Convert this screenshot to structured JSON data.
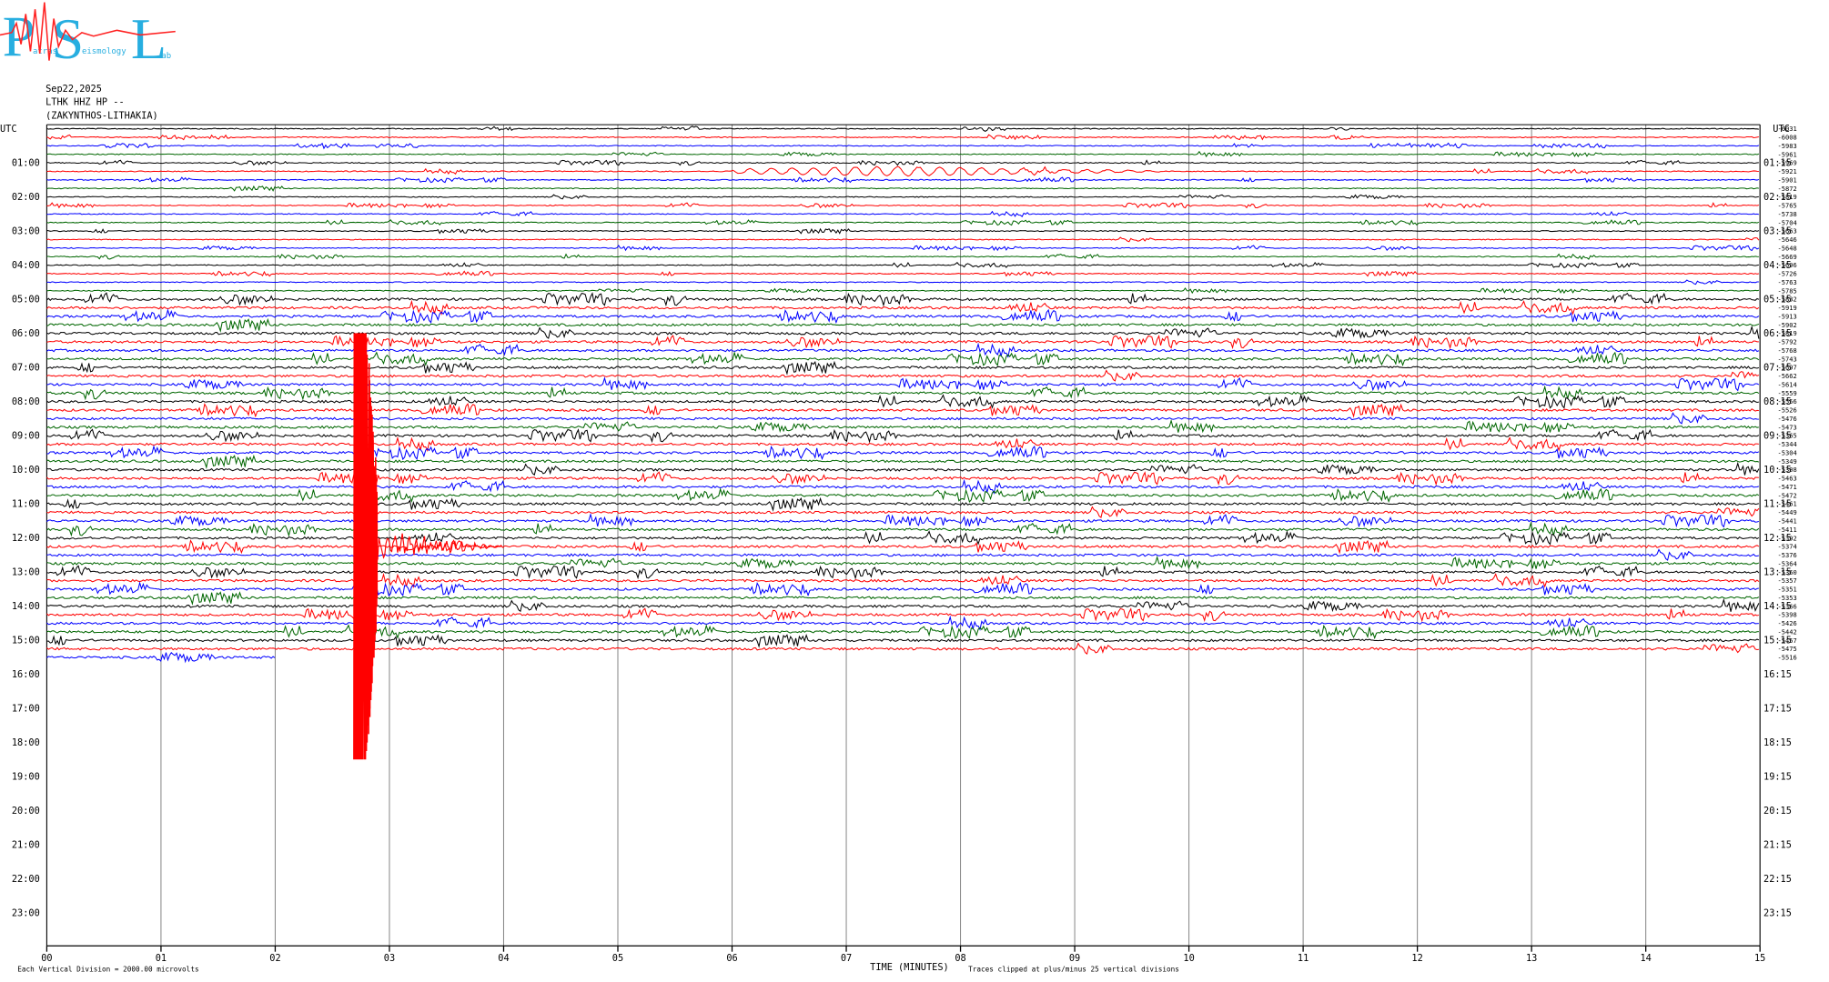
{
  "logo": {
    "letters": [
      "P",
      "S",
      "L"
    ],
    "small": [
      "atras",
      "eismology",
      "ab"
    ]
  },
  "header": {
    "date": "Sep22,2025",
    "station": "LTHK HHZ HP --",
    "location": "(ZAKYNTHOS-LITHAKIA)"
  },
  "left_axis": {
    "label": "UTC",
    "hours": [
      "01:00",
      "02:00",
      "03:00",
      "04:00",
      "05:00",
      "06:00",
      "07:00",
      "08:00",
      "09:00",
      "10:00",
      "11:00",
      "12:00",
      "13:00",
      "14:00",
      "15:00",
      "16:00",
      "17:00",
      "18:00",
      "19:00",
      "20:00",
      "21:00",
      "22:00",
      "23:00"
    ]
  },
  "right_axis": {
    "label": "UTC",
    "hours": [
      "01:15",
      "02:15",
      "03:15",
      "04:15",
      "05:15",
      "06:15",
      "07:15",
      "08:15",
      "09:15",
      "10:15",
      "11:15",
      "12:15",
      "13:15",
      "14:15",
      "15:15",
      "16:15",
      "17:15",
      "18:15",
      "19:15",
      "20:15",
      "21:15",
      "22:15",
      "23:15"
    ]
  },
  "trace_offsets": [
    -6031,
    -6008,
    -5983,
    -5961,
    -5969,
    -5921,
    -5901,
    -5872,
    -5819,
    -5765,
    -5738,
    -5704,
    -5663,
    -5646,
    -5648,
    -5669,
    -5696,
    -5726,
    -5763,
    -5785,
    -5832,
    -5919,
    -5913,
    -5902,
    -5819,
    -5792,
    -5768,
    -5743,
    -5697,
    -5662,
    -5614,
    -5559,
    -5556,
    -5526,
    -5476,
    -5473,
    -5365,
    -5344,
    -5304,
    -5349,
    -5308,
    -5463,
    -5471,
    -5472,
    -5461,
    -5449,
    -5441,
    -5411,
    -5392,
    -5374,
    -5376,
    -5364,
    -5360,
    -5357,
    -5351,
    -5353,
    -5366,
    -5398,
    -5426,
    -5442,
    -5457,
    -5475,
    -5516
  ],
  "x_axis": {
    "title": "TIME (MINUTES)",
    "ticks": [
      "00",
      "01",
      "02",
      "03",
      "04",
      "05",
      "06",
      "07",
      "08",
      "09",
      "10",
      "11",
      "12",
      "13",
      "14",
      "15"
    ]
  },
  "footer": {
    "scale": "Each Vertical Division = 2000.00 microvolts",
    "clip": "Traces clipped at plus/minus 25 vertical divisions"
  }
}
